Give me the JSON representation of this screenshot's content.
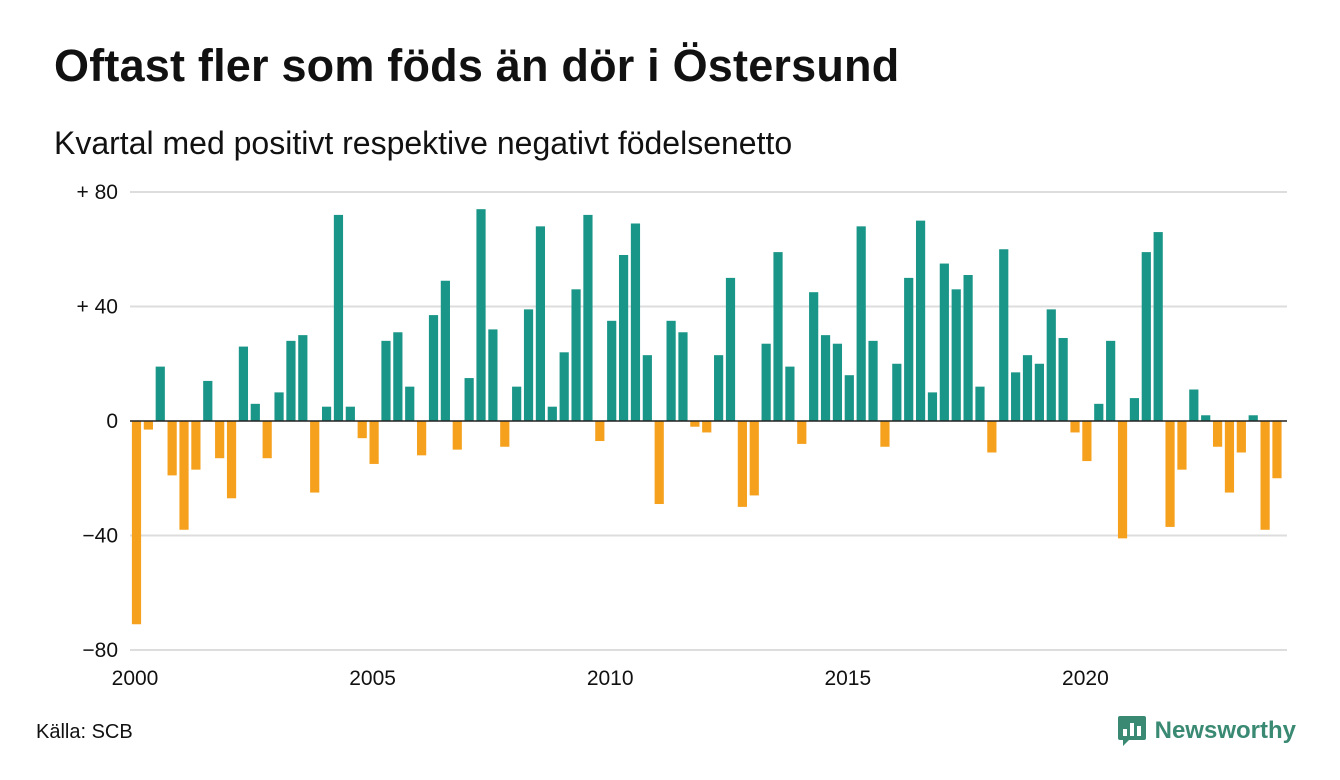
{
  "title": "Oftast fler som föds än dör i Östersund",
  "subtitle": "Kvartal med positivt respektive negativt födelsenetto",
  "source": "Källa: SCB",
  "brand": "Newsworthy",
  "colors": {
    "positive": "#1a9688",
    "negative": "#f5a11e",
    "brand": "#3a8a73"
  },
  "chart_data": {
    "type": "bar",
    "title": "Oftast fler som föds än dör i Östersund",
    "subtitle": "Kvartal med positivt respektive negativt födelsenetto",
    "x_start_year": 2000,
    "quarters_per_year": 4,
    "ylim": [
      -80,
      80
    ],
    "yticks": [
      80,
      40,
      0,
      -40,
      -80
    ],
    "ytick_labels": [
      "+ 80",
      "+ 40",
      "0",
      "−40",
      "−80"
    ],
    "xticks": [
      2000,
      2005,
      2010,
      2015,
      2020
    ],
    "xtick_labels": [
      "2000",
      "2005",
      "2010",
      "2015",
      "2020"
    ],
    "grid": true,
    "values": [
      -71,
      -3,
      19,
      -19,
      -38,
      -17,
      14,
      -13,
      -27,
      26,
      6,
      -13,
      10,
      28,
      30,
      -25,
      5,
      72,
      5,
      -6,
      -15,
      28,
      31,
      12,
      -12,
      37,
      49,
      -10,
      15,
      74,
      32,
      -9,
      12,
      39,
      68,
      5,
      24,
      46,
      72,
      -7,
      35,
      58,
      69,
      23,
      -29,
      35,
      31,
      -2,
      -4,
      23,
      50,
      -30,
      -26,
      27,
      59,
      19,
      -8,
      45,
      30,
      27,
      16,
      68,
      28,
      -9,
      20,
      50,
      70,
      10,
      55,
      46,
      51,
      12,
      -11,
      60,
      17,
      23,
      20,
      39,
      29,
      -4,
      -14,
      6,
      28,
      -41,
      8,
      59,
      66,
      -37,
      -17,
      11,
      2,
      -9,
      -25,
      -11,
      2,
      -38,
      -20
    ]
  }
}
